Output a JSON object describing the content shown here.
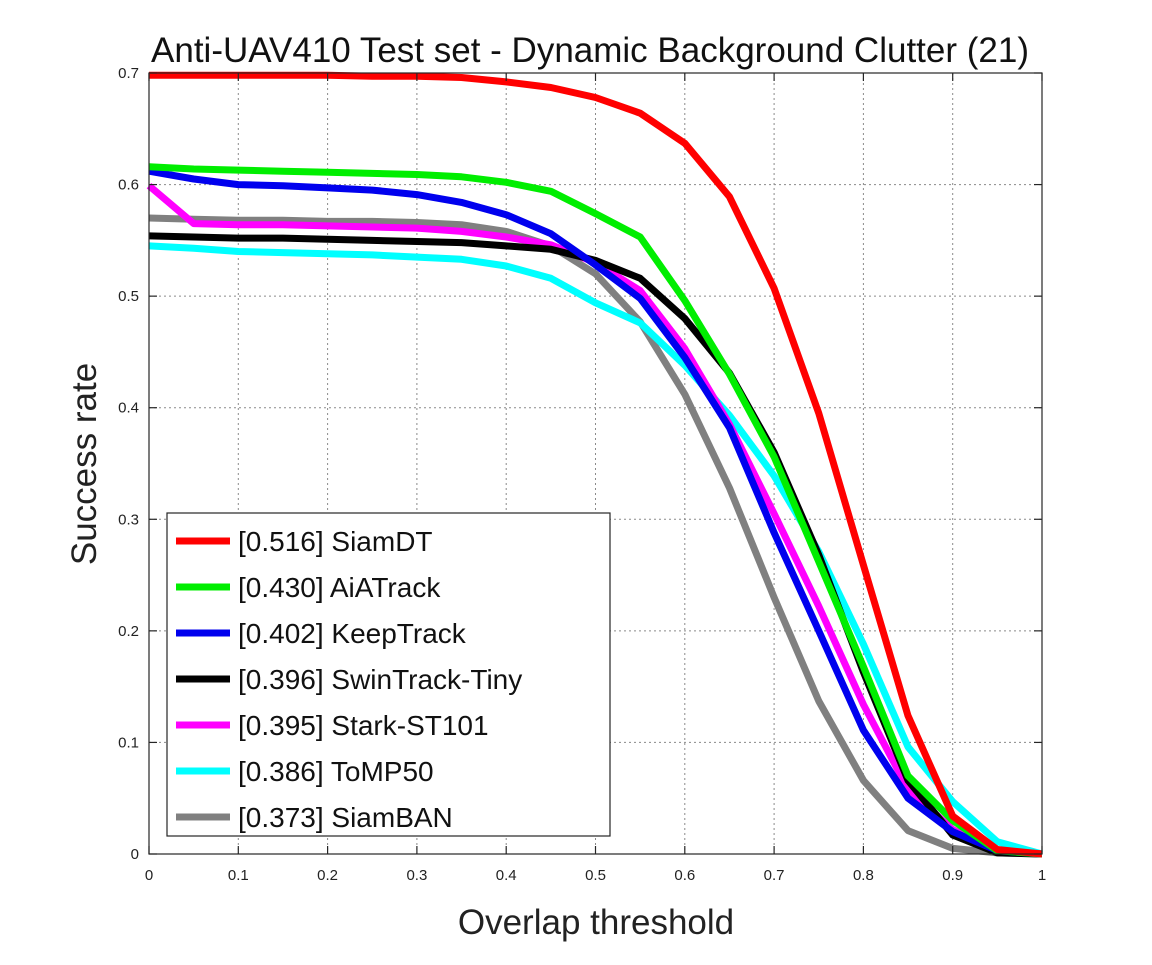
{
  "chart_data": {
    "type": "line",
    "title": "Anti-UAV410 Test set - Dynamic Background Clutter (21)",
    "xlabel": "Overlap threshold",
    "ylabel": "Success rate",
    "xlim": [
      0,
      1
    ],
    "ylim": [
      0,
      0.7
    ],
    "grid": true,
    "legend_position": "bottom-left",
    "x_ticks": [
      "0",
      "0.1",
      "0.2",
      "0.3",
      "0.4",
      "0.5",
      "0.6",
      "0.7",
      "0.8",
      "0.9",
      "1"
    ],
    "y_ticks": [
      "0",
      "0.1",
      "0.2",
      "0.3",
      "0.4",
      "0.5",
      "0.6",
      "0.7"
    ],
    "x": [
      0,
      0.05,
      0.1,
      0.15,
      0.2,
      0.25,
      0.3,
      0.35,
      0.4,
      0.45,
      0.5,
      0.55,
      0.6,
      0.65,
      0.7,
      0.75,
      0.8,
      0.85,
      0.9,
      0.95,
      1
    ],
    "series": [
      {
        "name": "[0.516] SiamDT",
        "color": "#ff0000",
        "values": [
          0.698,
          0.698,
          0.698,
          0.698,
          0.698,
          0.697,
          0.697,
          0.696,
          0.692,
          0.687,
          0.678,
          0.664,
          0.637,
          0.589,
          0.507,
          0.395,
          0.259,
          0.124,
          0.034,
          0.004,
          0.0
        ]
      },
      {
        "name": "[0.430] AiATrack",
        "color": "#00ee00",
        "values": [
          0.616,
          0.614,
          0.613,
          0.612,
          0.611,
          0.61,
          0.609,
          0.607,
          0.602,
          0.594,
          0.574,
          0.553,
          0.496,
          0.43,
          0.356,
          0.262,
          0.168,
          0.07,
          0.03,
          0.003,
          0.0
        ]
      },
      {
        "name": "[0.402] KeepTrack",
        "color": "#0000ee",
        "values": [
          0.612,
          0.605,
          0.6,
          0.599,
          0.597,
          0.595,
          0.591,
          0.584,
          0.573,
          0.556,
          0.528,
          0.498,
          0.445,
          0.382,
          0.288,
          0.2,
          0.111,
          0.05,
          0.02,
          0.003,
          0.0
        ]
      },
      {
        "name": "[0.396] SwinTrack-Tiny",
        "color": "#000000",
        "values": [
          0.554,
          0.553,
          0.552,
          0.552,
          0.551,
          0.55,
          0.549,
          0.548,
          0.545,
          0.542,
          0.532,
          0.516,
          0.48,
          0.431,
          0.36,
          0.268,
          0.163,
          0.066,
          0.017,
          0.001,
          0.0
        ]
      },
      {
        "name": "[0.395] Stark-ST101",
        "color": "#ff00ff",
        "values": [
          0.599,
          0.565,
          0.564,
          0.564,
          0.563,
          0.562,
          0.561,
          0.558,
          0.553,
          0.546,
          0.53,
          0.505,
          0.453,
          0.385,
          0.305,
          0.222,
          0.134,
          0.058,
          0.022,
          0.002,
          0.0
        ]
      },
      {
        "name": "[0.386] ToMP50",
        "color": "#00ffff",
        "values": [
          0.545,
          0.543,
          0.54,
          0.539,
          0.538,
          0.537,
          0.535,
          0.533,
          0.527,
          0.516,
          0.494,
          0.476,
          0.438,
          0.393,
          0.339,
          0.271,
          0.188,
          0.096,
          0.047,
          0.011,
          0.0
        ]
      },
      {
        "name": "[0.373] SiamBAN",
        "color": "#808080",
        "values": [
          0.57,
          0.569,
          0.568,
          0.568,
          0.567,
          0.567,
          0.566,
          0.564,
          0.558,
          0.545,
          0.52,
          0.477,
          0.412,
          0.328,
          0.23,
          0.137,
          0.066,
          0.021,
          0.005,
          0.001,
          0.0
        ]
      }
    ]
  }
}
